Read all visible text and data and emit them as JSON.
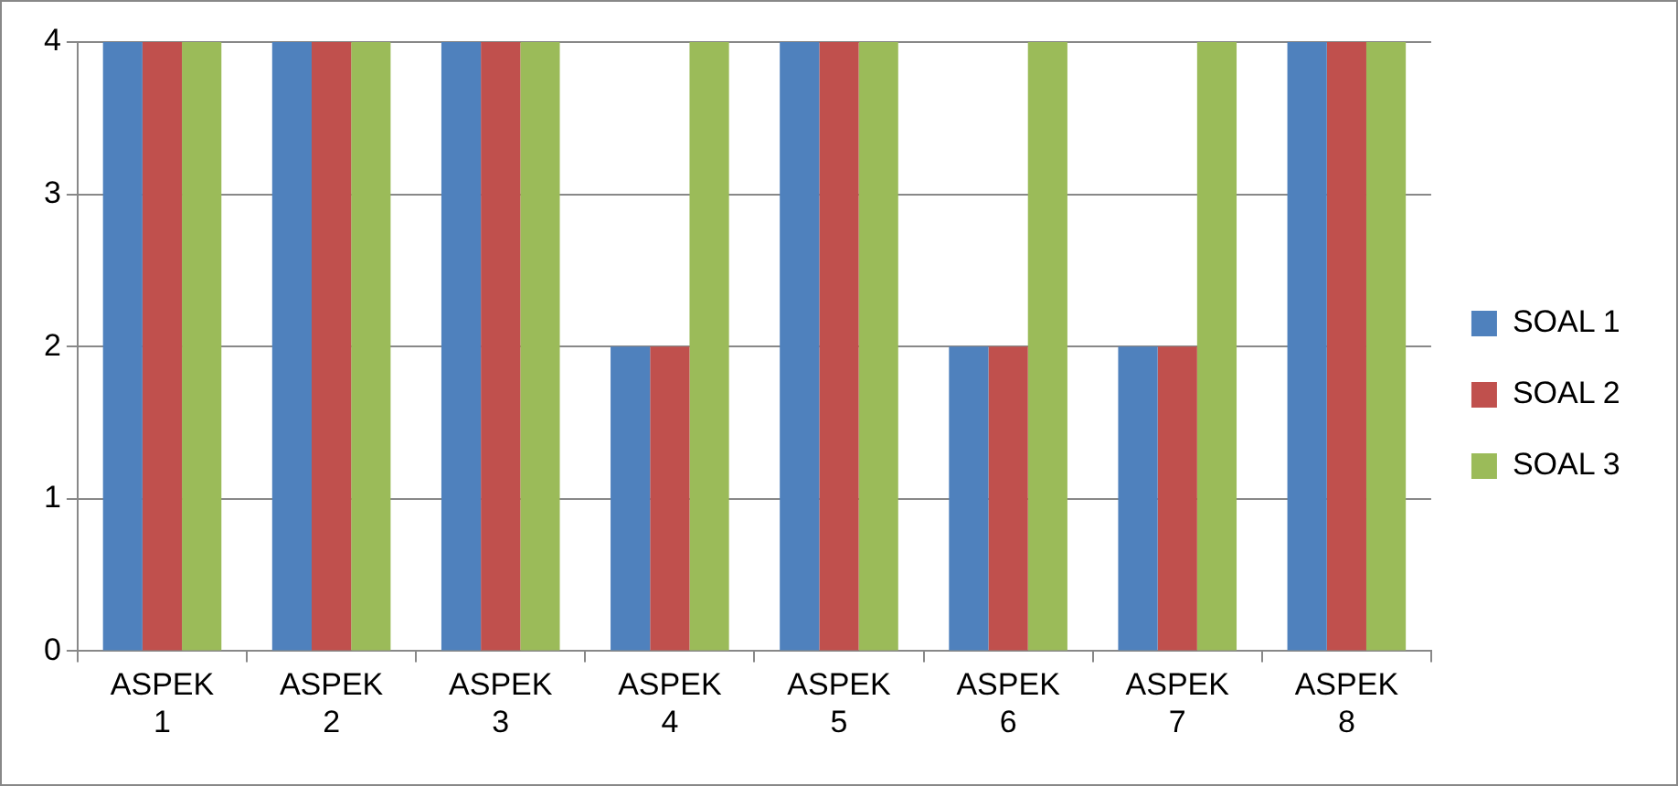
{
  "chart_data": {
    "type": "bar",
    "categories": [
      "ASPEK 1",
      "ASPEK 2",
      "ASPEK 3",
      "ASPEK 4",
      "ASPEK 5",
      "ASPEK 6",
      "ASPEK 7",
      "ASPEK 8"
    ],
    "series": [
      {
        "name": "SOAL 1",
        "color": "#4f81bd",
        "values": [
          4,
          4,
          4,
          2,
          4,
          2,
          2,
          4
        ]
      },
      {
        "name": "SOAL 2",
        "color": "#c0504d",
        "values": [
          4,
          4,
          4,
          2,
          4,
          2,
          2,
          4
        ]
      },
      {
        "name": "SOAL 3",
        "color": "#9bbb59",
        "values": [
          4,
          4,
          4,
          4,
          4,
          4,
          4,
          4
        ]
      }
    ],
    "ylim": [
      0,
      4
    ],
    "yticks": [
      0,
      1,
      2,
      3,
      4
    ],
    "grid": "y",
    "legend": "right"
  }
}
